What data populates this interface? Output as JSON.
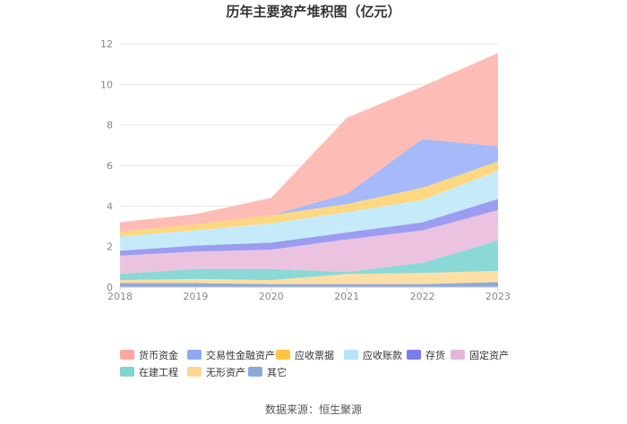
{
  "chart_data": {
    "type": "area",
    "stacked": true,
    "title": "历年主要资产堆积图（亿元）",
    "source": "数据来源：恒生聚源",
    "x": [
      "2018",
      "2019",
      "2020",
      "2021",
      "2022",
      "2023"
    ],
    "ylim": [
      0,
      12
    ],
    "yticks": [
      0,
      2,
      4,
      6,
      8,
      10,
      12
    ],
    "grid": true,
    "legend_position": "bottom",
    "series": [
      {
        "name": "其它",
        "color": "#8eaad8",
        "values": [
          0.2,
          0.2,
          0.15,
          0.15,
          0.15,
          0.25
        ]
      },
      {
        "name": "无形资产",
        "color": "#fddfa6",
        "values": [
          0.15,
          0.2,
          0.2,
          0.5,
          0.55,
          0.55
        ]
      },
      {
        "name": "在建工程",
        "color": "#8ad9d6",
        "values": [
          0.3,
          0.5,
          0.55,
          0.1,
          0.5,
          1.5
        ]
      },
      {
        "name": "固定资产",
        "color": "#ebc3e0",
        "values": [
          0.9,
          0.85,
          0.95,
          1.6,
          1.6,
          1.5
        ]
      },
      {
        "name": "存货",
        "color": "#9c9df0",
        "values": [
          0.25,
          0.3,
          0.35,
          0.35,
          0.4,
          0.55
        ]
      },
      {
        "name": "应收账款",
        "color": "#c5ebfa",
        "values": [
          0.7,
          0.75,
          0.95,
          1.0,
          1.1,
          1.4
        ]
      },
      {
        "name": "应收票据",
        "color": "#fdd880",
        "values": [
          0.25,
          0.3,
          0.4,
          0.4,
          0.6,
          0.45
        ]
      },
      {
        "name": "交易性金融资产",
        "color": "#a6b9f8",
        "values": [
          0.0,
          0.0,
          0.0,
          0.5,
          2.4,
          0.75
        ]
      },
      {
        "name": "货币资金",
        "color": "#fdbcb5",
        "values": [
          0.45,
          0.5,
          0.85,
          3.75,
          2.6,
          4.6
        ]
      }
    ],
    "legend_order": [
      "货币资金",
      "交易性金融资产",
      "应收票据",
      "应收账款",
      "存货",
      "固定资产",
      "在建工程",
      "无形资产",
      "其它"
    ],
    "legend_colors": {
      "货币资金": "#f9a89f",
      "交易性金融资产": "#8fa9f6",
      "应收票据": "#fdc542",
      "应收账款": "#b4e4f8",
      "存货": "#7b7cec",
      "固定资产": "#e6b6da",
      "在建工程": "#7fd3d0",
      "无形资产": "#fdd694",
      "其它": "#8aa9d8"
    }
  }
}
